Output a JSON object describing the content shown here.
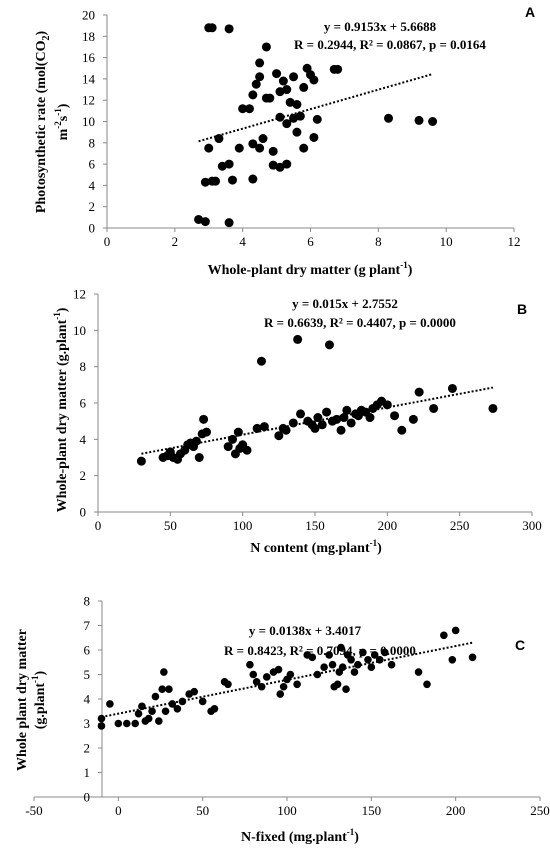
{
  "chart_data": [
    {
      "type": "scatter",
      "panel_label": "A",
      "xlabel": "Whole-plant dry matter (g plant",
      "xlabel_sup": "-1",
      "xlabel_end": ")",
      "ylabel_line1": "Photosynthetic rate (mol(CO",
      "ylabel_line1_sub": "2",
      "ylabel_line1_end": ")",
      "ylabel_line2": "m",
      "ylabel_line2_sup1": "-2",
      "ylabel_line2_mid": "s",
      "ylabel_line2_sup2": "-1",
      "ylabel_line2_end": ")",
      "equation": "y = 0.9153x + 5.6688",
      "stats": "R = 0.2944, R² = 0.0867, p = 0.0164",
      "xlim": [
        0,
        12
      ],
      "ylim": [
        0,
        20
      ],
      "xticks": [
        "0",
        "2",
        "4",
        "6",
        "8",
        "10",
        "12"
      ],
      "yticks": [
        "0",
        "2",
        "4",
        "6",
        "8",
        "10",
        "12",
        "14",
        "16",
        "18",
        "20"
      ],
      "trendline": {
        "slope": 0.9153,
        "intercept": 5.6688,
        "x_range": [
          2.7,
          9.6
        ]
      },
      "points": [
        [
          2.7,
          0.8
        ],
        [
          2.9,
          0.6
        ],
        [
          3.6,
          0.5
        ],
        [
          2.9,
          4.3
        ],
        [
          3.1,
          4.4
        ],
        [
          3.2,
          4.4
        ],
        [
          3.7,
          4.5
        ],
        [
          4.3,
          4.6
        ],
        [
          3.0,
          7.5
        ],
        [
          3.3,
          8.4
        ],
        [
          3.4,
          5.8
        ],
        [
          3.6,
          6.0
        ],
        [
          3.9,
          7.5
        ],
        [
          4.3,
          7.9
        ],
        [
          4.5,
          7.5
        ],
        [
          4.6,
          8.4
        ],
        [
          4.9,
          7.2
        ],
        [
          5.1,
          5.7
        ],
        [
          5.3,
          6.0
        ],
        [
          5.6,
          9.0
        ],
        [
          5.8,
          7.5
        ],
        [
          6.1,
          8.5
        ],
        [
          4.9,
          5.9
        ],
        [
          3.0,
          18.8
        ],
        [
          3.1,
          18.8
        ],
        [
          3.6,
          18.7
        ],
        [
          4.0,
          11.2
        ],
        [
          4.2,
          11.2
        ],
        [
          4.3,
          12.5
        ],
        [
          4.4,
          13.5
        ],
        [
          4.5,
          14.2
        ],
        [
          4.5,
          15.5
        ],
        [
          4.7,
          12.2
        ],
        [
          4.7,
          17.0
        ],
        [
          4.8,
          12.2
        ],
        [
          5.0,
          14.5
        ],
        [
          5.1,
          12.8
        ],
        [
          5.2,
          13.8
        ],
        [
          5.3,
          13.0
        ],
        [
          5.4,
          11.8
        ],
        [
          5.5,
          14.2
        ],
        [
          5.5,
          10.3
        ],
        [
          5.6,
          11.6
        ],
        [
          5.7,
          10.5
        ],
        [
          5.8,
          13.2
        ],
        [
          5.9,
          15.0
        ],
        [
          6.0,
          14.4
        ],
        [
          6.1,
          13.9
        ],
        [
          6.2,
          10.2
        ],
        [
          6.7,
          14.9
        ],
        [
          6.8,
          14.9
        ],
        [
          5.1,
          10.4
        ],
        [
          5.3,
          9.8
        ],
        [
          8.3,
          10.3
        ],
        [
          9.2,
          10.1
        ],
        [
          9.6,
          10.0
        ]
      ]
    },
    {
      "type": "scatter",
      "panel_label": "B",
      "xlabel": "N content (mg.plant",
      "xlabel_sup": "-1",
      "xlabel_end": ")",
      "ylabel_line1": "Whole-plant dry matter (g.plant",
      "ylabel_line1_sup": "-1",
      "ylabel_line1_end": ")",
      "equation": "y = 0.015x + 2.7552",
      "stats": "R = 0.6639, R² = 0.4407, p = 0.0000",
      "xlim": [
        0,
        300
      ],
      "ylim": [
        0,
        12
      ],
      "xticks": [
        "0",
        "50",
        "100",
        "150",
        "200",
        "250",
        "300"
      ],
      "yticks": [
        "0",
        "2",
        "4",
        "6",
        "8",
        "10",
        "12"
      ],
      "trendline": {
        "slope": 0.015,
        "intercept": 2.7552,
        "x_range": [
          30,
          273
        ]
      },
      "points": [
        [
          30,
          2.8
        ],
        [
          45,
          3.0
        ],
        [
          48,
          3.1
        ],
        [
          50,
          3.3
        ],
        [
          52,
          3.0
        ],
        [
          55,
          2.9
        ],
        [
          57,
          3.2
        ],
        [
          60,
          3.4
        ],
        [
          62,
          3.7
        ],
        [
          64,
          3.8
        ],
        [
          66,
          3.6
        ],
        [
          68,
          3.9
        ],
        [
          70,
          3.0
        ],
        [
          72,
          4.3
        ],
        [
          73,
          5.1
        ],
        [
          75,
          4.4
        ],
        [
          90,
          3.6
        ],
        [
          93,
          4.0
        ],
        [
          95,
          3.2
        ],
        [
          97,
          4.4
        ],
        [
          98,
          3.5
        ],
        [
          100,
          3.7
        ],
        [
          103,
          3.4
        ],
        [
          110,
          4.6
        ],
        [
          113,
          8.3
        ],
        [
          115,
          4.7
        ],
        [
          125,
          4.2
        ],
        [
          128,
          4.6
        ],
        [
          130,
          4.5
        ],
        [
          135,
          4.9
        ],
        [
          138,
          9.5
        ],
        [
          140,
          5.4
        ],
        [
          145,
          5.0
        ],
        [
          148,
          4.8
        ],
        [
          150,
          4.6
        ],
        [
          152,
          5.2
        ],
        [
          155,
          4.8
        ],
        [
          158,
          5.5
        ],
        [
          160,
          9.2
        ],
        [
          162,
          5.0
        ],
        [
          165,
          5.1
        ],
        [
          168,
          4.5
        ],
        [
          170,
          5.2
        ],
        [
          172,
          5.6
        ],
        [
          175,
          4.9
        ],
        [
          178,
          5.4
        ],
        [
          180,
          5.3
        ],
        [
          182,
          5.6
        ],
        [
          185,
          5.5
        ],
        [
          188,
          5.2
        ],
        [
          190,
          5.7
        ],
        [
          193,
          5.9
        ],
        [
          196,
          6.1
        ],
        [
          200,
          5.9
        ],
        [
          205,
          5.3
        ],
        [
          210,
          4.5
        ],
        [
          218,
          5.1
        ],
        [
          222,
          6.6
        ],
        [
          232,
          5.7
        ],
        [
          245,
          6.8
        ],
        [
          273,
          5.7
        ]
      ]
    },
    {
      "type": "scatter",
      "panel_label": "C",
      "xlabel": "N-fixed (mg.plant",
      "xlabel_sup": "-1",
      "xlabel_end": ")",
      "ylabel_line1": "Whole plant dry matter",
      "ylabel_line2": "(g.plant",
      "ylabel_line2_sup": "-1",
      "ylabel_line2_end": ")",
      "equation": "y = 0.0138x + 3.4017",
      "stats": "R = 0.8423, R² = 0.7094, p = 0.0000",
      "xlim": [
        -50,
        250
      ],
      "ylim": [
        0,
        8
      ],
      "xticks": [
        "-50",
        "0",
        "50",
        "100",
        "150",
        "200",
        "250"
      ],
      "yticks": [
        "0",
        "1",
        "2",
        "3",
        "4",
        "5",
        "6",
        "7",
        "8"
      ],
      "trendline": {
        "slope": 0.0138,
        "intercept": 3.4017,
        "x_range": [
          -10,
          210
        ]
      },
      "points": [
        [
          -10,
          3.2
        ],
        [
          -10,
          2.9
        ],
        [
          -5,
          3.8
        ],
        [
          0,
          3.0
        ],
        [
          5,
          3.0
        ],
        [
          10,
          3.0
        ],
        [
          12,
          3.4
        ],
        [
          14,
          3.7
        ],
        [
          16,
          3.1
        ],
        [
          18,
          3.2
        ],
        [
          20,
          3.5
        ],
        [
          22,
          4.1
        ],
        [
          24,
          3.1
        ],
        [
          26,
          4.4
        ],
        [
          27,
          5.1
        ],
        [
          28,
          3.5
        ],
        [
          30,
          4.4
        ],
        [
          32,
          3.8
        ],
        [
          35,
          3.6
        ],
        [
          38,
          3.9
        ],
        [
          42,
          4.2
        ],
        [
          45,
          4.3
        ],
        [
          50,
          3.9
        ],
        [
          55,
          3.5
        ],
        [
          57,
          3.6
        ],
        [
          63,
          4.7
        ],
        [
          65,
          4.6
        ],
        [
          78,
          5.4
        ],
        [
          80,
          5.0
        ],
        [
          82,
          4.7
        ],
        [
          85,
          4.5
        ],
        [
          88,
          4.9
        ],
        [
          92,
          5.1
        ],
        [
          95,
          5.2
        ],
        [
          96,
          4.2
        ],
        [
          98,
          4.5
        ],
        [
          100,
          4.8
        ],
        [
          102,
          5.0
        ],
        [
          106,
          4.6
        ],
        [
          112,
          5.8
        ],
        [
          115,
          5.7
        ],
        [
          118,
          5.0
        ],
        [
          122,
          5.3
        ],
        [
          125,
          5.8
        ],
        [
          127,
          5.4
        ],
        [
          128,
          4.5
        ],
        [
          130,
          4.6
        ],
        [
          131,
          5.1
        ],
        [
          132,
          6.1
        ],
        [
          133,
          5.3
        ],
        [
          135,
          4.4
        ],
        [
          136,
          5.8
        ],
        [
          138,
          5.6
        ],
        [
          140,
          5.1
        ],
        [
          142,
          5.4
        ],
        [
          145,
          5.9
        ],
        [
          148,
          5.6
        ],
        [
          150,
          5.3
        ],
        [
          152,
          5.8
        ],
        [
          155,
          5.6
        ],
        [
          158,
          5.9
        ],
        [
          162,
          5.4
        ],
        [
          178,
          5.1
        ],
        [
          183,
          4.6
        ],
        [
          193,
          6.6
        ],
        [
          198,
          5.6
        ],
        [
          200,
          6.8
        ],
        [
          210,
          5.7
        ]
      ]
    }
  ]
}
